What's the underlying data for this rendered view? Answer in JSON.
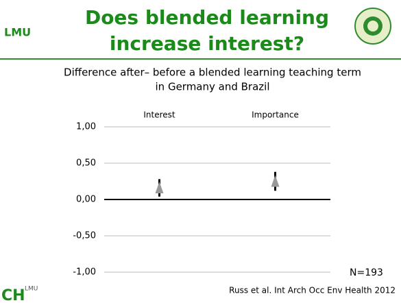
{
  "logos": {
    "top_left": "LMU",
    "bottom_left": "CH",
    "bottom_left_sup": "LMU"
  },
  "chart_data": {
    "type": "errorbar",
    "title_lines": [
      "Does blended learning",
      "increase interest?"
    ],
    "subtitle_lines": [
      "Difference after– before a blended learning teaching term",
      "in Germany and Brazil"
    ],
    "categories": [
      "Interest",
      "Importance"
    ],
    "values": [
      0.16,
      0.25
    ],
    "errors": [
      0.12,
      0.13
    ],
    "marker_color": "#999999",
    "errorbar_color": "#000000",
    "ylim": [
      -1,
      1
    ],
    "yticks": [
      {
        "value": -1,
        "label": "-1,00"
      },
      {
        "value": -0.5,
        "label": "-0,50"
      },
      {
        "value": 0,
        "label": "0,00"
      },
      {
        "value": 0.5,
        "label": "0,50"
      },
      {
        "value": 1,
        "label": "1,00"
      }
    ],
    "grid": true,
    "annotations": [
      "N=193",
      "Russ et al. Int Arch Occ Env Health 2012"
    ]
  }
}
